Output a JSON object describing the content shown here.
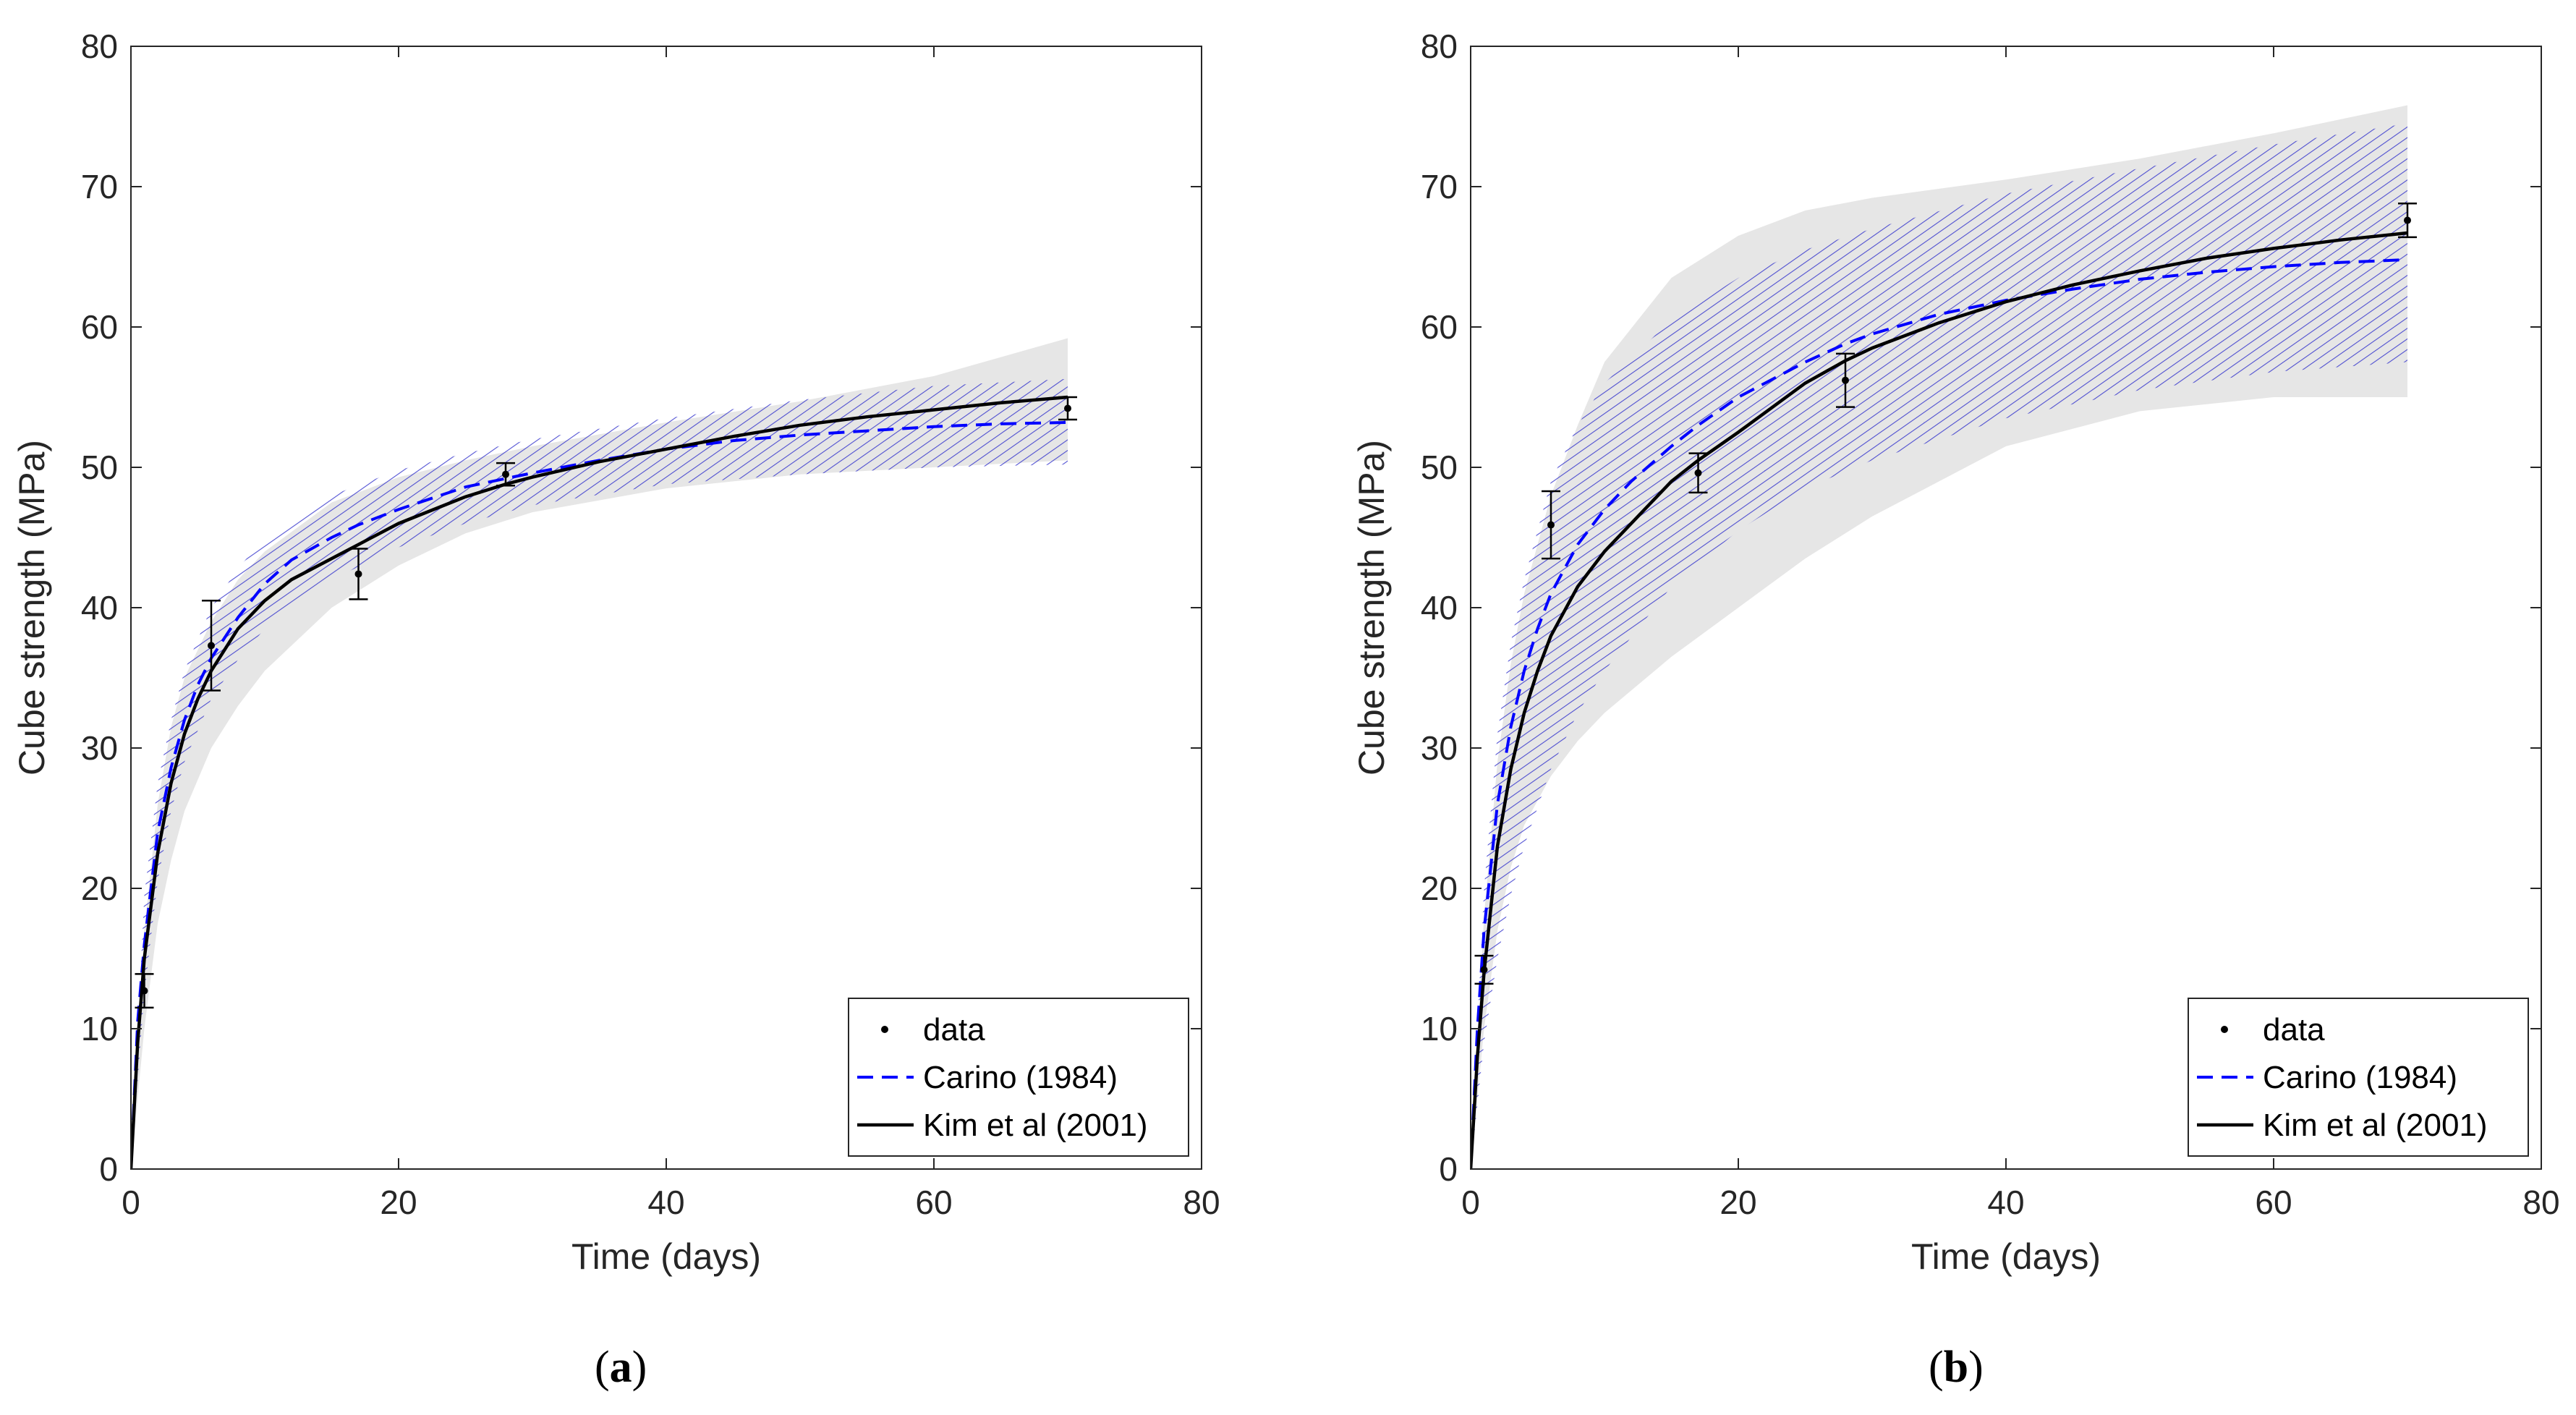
{
  "chart_data": [
    {
      "type": "line",
      "panel_label": "(a)",
      "panel_letter": "a",
      "xlabel": "Time (days)",
      "ylabel": "Cube strength (MPa)",
      "xlim": [
        0,
        80
      ],
      "ylim": [
        0,
        80
      ],
      "xticks": [
        0,
        20,
        40,
        60,
        80
      ],
      "yticks": [
        0,
        10,
        20,
        30,
        40,
        50,
        60,
        70,
        80
      ],
      "legend_position": "bottom-right",
      "grid": false,
      "data": {
        "name": "data",
        "x": [
          1,
          6,
          17,
          28,
          70
        ],
        "y": [
          12.7,
          37.3,
          42.4,
          49.5,
          54.2
        ],
        "err": [
          1.2,
          3.2,
          1.8,
          0.8,
          0.8
        ]
      },
      "series": [
        {
          "name": "Carino (1984)",
          "style": "dashed",
          "color": "#0000ff",
          "x": [
            0,
            0.5,
            1,
            2,
            3,
            4,
            5,
            6,
            8,
            10,
            12,
            15,
            17,
            20,
            25,
            28,
            30,
            35,
            40,
            45,
            50,
            55,
            60,
            65,
            70
          ],
          "y": [
            0,
            10.5,
            16.0,
            24.0,
            28.6,
            32.0,
            34.5,
            36.4,
            39.3,
            41.7,
            43.4,
            45.0,
            45.9,
            47.0,
            48.6,
            49.2,
            49.6,
            50.5,
            51.3,
            51.9,
            52.3,
            52.6,
            52.9,
            53.1,
            53.2
          ]
        },
        {
          "name": "Kim et al (2001)",
          "style": "solid",
          "color": "#000000",
          "x": [
            0,
            0.5,
            1,
            2,
            3,
            4,
            5,
            6,
            8,
            10,
            12,
            15,
            17,
            20,
            25,
            28,
            30,
            35,
            40,
            45,
            50,
            55,
            60,
            65,
            70
          ],
          "y": [
            0,
            9.0,
            15.0,
            22.5,
            27.5,
            31.0,
            33.5,
            35.5,
            38.5,
            40.5,
            42.0,
            43.5,
            44.5,
            46.0,
            47.9,
            48.8,
            49.3,
            50.4,
            51.3,
            52.2,
            53.0,
            53.6,
            54.1,
            54.6,
            55.0
          ]
        }
      ],
      "bands": [
        {
          "for": "Kim et al (2001)",
          "fill": "#e6e6e6",
          "x": [
            0,
            1,
            2,
            3,
            4,
            6,
            8,
            10,
            15,
            20,
            25,
            30,
            40,
            50,
            60,
            70
          ],
          "lower": [
            0,
            10.0,
            17.5,
            22.0,
            25.5,
            30.0,
            33.0,
            35.5,
            40.0,
            43.0,
            45.3,
            46.8,
            48.5,
            49.5,
            50.0,
            50.5
          ],
          "upper": [
            0,
            17.0,
            26.0,
            31.5,
            35.0,
            39.0,
            42.0,
            44.0,
            47.5,
            49.3,
            50.5,
            51.5,
            53.2,
            54.7,
            56.5,
            59.2
          ]
        },
        {
          "for": "Carino (1984)",
          "fill": "#3333cc",
          "x": [
            0,
            1,
            2,
            3,
            4,
            6,
            8,
            10,
            15,
            20,
            25,
            30,
            40,
            50,
            60,
            70
          ],
          "lower": [
            0,
            12.5,
            20.5,
            25.5,
            29.0,
            33.5,
            36.3,
            38.5,
            42.0,
            44.3,
            46.0,
            47.3,
            48.8,
            49.5,
            50.0,
            50.2
          ],
          "upper": [
            0,
            19.5,
            27.5,
            32.0,
            35.5,
            40.0,
            42.8,
            45.0,
            48.0,
            49.8,
            51.0,
            52.0,
            53.5,
            54.8,
            55.8,
            56.3
          ]
        }
      ],
      "legend": [
        "data",
        "Carino (1984)",
        "Kim et al (2001)"
      ]
    },
    {
      "type": "line",
      "panel_label": "(b)",
      "panel_letter": "b",
      "xlabel": "Time (days)",
      "ylabel": "Cube strength (MPa)",
      "xlim": [
        0,
        80
      ],
      "ylim": [
        0,
        80
      ],
      "xticks": [
        0,
        20,
        40,
        60,
        80
      ],
      "yticks": [
        0,
        10,
        20,
        30,
        40,
        50,
        60,
        70,
        80
      ],
      "legend_position": "bottom-right",
      "grid": false,
      "data": {
        "name": "data",
        "x": [
          1,
          6,
          17,
          28,
          70
        ],
        "y": [
          14.2,
          45.9,
          49.6,
          56.2,
          67.6
        ],
        "err": [
          1.0,
          2.4,
          1.4,
          1.9,
          1.2
        ]
      },
      "series": [
        {
          "name": "Carino (1984)",
          "style": "dashed",
          "color": "#0000ff",
          "x": [
            0,
            0.5,
            1,
            2,
            3,
            4,
            5,
            6,
            8,
            10,
            12,
            15,
            17,
            20,
            25,
            28,
            30,
            35,
            40,
            45,
            50,
            55,
            60,
            65,
            70
          ],
          "y": [
            0,
            10.0,
            17.0,
            26.0,
            31.5,
            35.5,
            38.5,
            41.0,
            44.5,
            47.0,
            49.0,
            51.5,
            53.0,
            55.0,
            57.5,
            58.8,
            59.5,
            60.9,
            61.9,
            62.7,
            63.4,
            63.9,
            64.3,
            64.6,
            64.8
          ]
        },
        {
          "name": "Kim et al (2001)",
          "style": "solid",
          "color": "#000000",
          "x": [
            0,
            0.5,
            1,
            2,
            3,
            4,
            5,
            6,
            8,
            10,
            12,
            15,
            17,
            20,
            25,
            28,
            30,
            35,
            40,
            45,
            50,
            55,
            60,
            65,
            70
          ],
          "y": [
            0,
            8.0,
            14.0,
            23.0,
            28.5,
            32.5,
            35.5,
            38.0,
            41.5,
            44.0,
            46.0,
            49.0,
            50.5,
            52.5,
            56.0,
            57.6,
            58.5,
            60.3,
            61.8,
            63.0,
            64.0,
            64.9,
            65.6,
            66.2,
            66.7
          ]
        }
      ],
      "bands": [
        {
          "for": "Kim et al (2001)",
          "fill": "#e6e6e6",
          "x": [
            0,
            1,
            2,
            3,
            4,
            6,
            8,
            10,
            15,
            20,
            25,
            30,
            40,
            50,
            60,
            70
          ],
          "lower": [
            0,
            10.0,
            17.0,
            21.5,
            24.5,
            28.0,
            30.5,
            32.5,
            36.5,
            40.0,
            43.5,
            46.5,
            51.5,
            54.0,
            55.0,
            55.0
          ],
          "upper": [
            0,
            18.0,
            29.0,
            36.0,
            41.0,
            48.0,
            53.0,
            57.5,
            63.5,
            66.5,
            68.3,
            69.2,
            70.5,
            72.0,
            73.8,
            75.8
          ]
        },
        {
          "for": "Carino (1984)",
          "fill": "#3333cc",
          "x": [
            0,
            1,
            2,
            3,
            4,
            6,
            8,
            10,
            15,
            20,
            25,
            30,
            40,
            50,
            60,
            70
          ],
          "lower": [
            0,
            9.0,
            15.0,
            19.5,
            23.0,
            28.5,
            32.5,
            35.5,
            41.5,
            45.5,
            48.5,
            50.5,
            53.5,
            55.5,
            56.8,
            57.5
          ],
          "upper": [
            0,
            20.0,
            31.0,
            37.5,
            42.0,
            49.0,
            53.0,
            56.0,
            60.5,
            63.5,
            65.5,
            67.0,
            69.5,
            71.3,
            73.0,
            74.5
          ]
        }
      ],
      "legend": [
        "data",
        "Carino (1984)",
        "Kim et al (2001)"
      ]
    }
  ]
}
